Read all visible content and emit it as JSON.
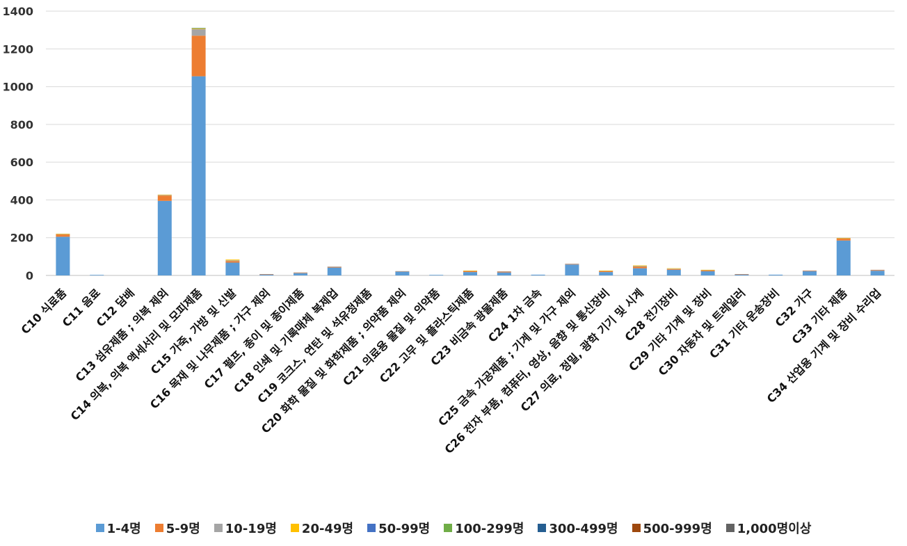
{
  "chart_data": {
    "type": "bar",
    "stacked": true,
    "grid": true,
    "legend_position": "bottom",
    "ylim": [
      0,
      1400
    ],
    "yticks": [
      0,
      200,
      400,
      600,
      800,
      1000,
      1200,
      1400
    ],
    "categories": [
      "C10 식료품",
      "C11 음료",
      "C12 담배",
      "C13 섬유제품 ; 의복 제외",
      "C14 의복, 의복 액세서리 및 모피제품",
      "C15 가죽, 가방 및 신발",
      "C16 목재 및 나무제품 ; 가구 제외",
      "C17 펄프, 종이 및 종이제품",
      "C18 인쇄 및 기록매체 복제업",
      "C19 코크스, 연탄 및 석유정제품",
      "C20 화학 물질 및 화학제품 ; 의약품 제외",
      "C21 의료용 물질 및 의약품",
      "C22 고무 및 플라스틱제품",
      "C23 비금속 광물제품",
      "C24 1차 금속",
      "C25 금속 가공제품 ; 기계 및 가구 제외",
      "C26 전자 부품, 컴퓨터, 영상, 음향 및 통신장비",
      "C27 의료, 정밀, 광학 기기 및 시계",
      "C28 전기장비",
      "C29 기타 기계 및 장비",
      "C30 자동차 및 트레일러",
      "C31 기타 운송장비",
      "C32 가구",
      "C33 기타 제품",
      "C34 산업용 기계 및 장비 수리업"
    ],
    "series": [
      {
        "name": "1-4명",
        "color": "#5B9BD5",
        "values": [
          205,
          3,
          0,
          395,
          1055,
          68,
          6,
          12,
          42,
          0,
          20,
          3,
          18,
          16,
          4,
          58,
          18,
          38,
          30,
          22,
          6,
          4,
          22,
          185,
          25
        ]
      },
      {
        "name": "5-9명",
        "color": "#ED7D31",
        "values": [
          12,
          0,
          0,
          28,
          215,
          8,
          1,
          3,
          4,
          0,
          2,
          0,
          5,
          4,
          0,
          3,
          5,
          8,
          4,
          4,
          1,
          0,
          3,
          10,
          4
        ]
      },
      {
        "name": "10-19명",
        "color": "#A5A5A5",
        "values": [
          3,
          0,
          0,
          4,
          35,
          4,
          0,
          1,
          1,
          0,
          1,
          0,
          2,
          2,
          0,
          1,
          2,
          4,
          2,
          2,
          0,
          0,
          1,
          3,
          1
        ]
      },
      {
        "name": "20-49명",
        "color": "#FFC000",
        "values": [
          1,
          0,
          0,
          1,
          4,
          4,
          0,
          0,
          0,
          0,
          0,
          0,
          1,
          0,
          0,
          0,
          1,
          3,
          2,
          2,
          0,
          0,
          0,
          1,
          0
        ]
      },
      {
        "name": "50-99명",
        "color": "#4472C4",
        "values": [
          0,
          0,
          0,
          0,
          1,
          0,
          0,
          0,
          0,
          0,
          0,
          0,
          0,
          0,
          0,
          0,
          0,
          0,
          0,
          0,
          0,
          0,
          0,
          0,
          0
        ]
      },
      {
        "name": "100-299명",
        "color": "#70AD47",
        "values": [
          0,
          0,
          0,
          0,
          1,
          0,
          0,
          0,
          0,
          0,
          0,
          0,
          0,
          0,
          0,
          0,
          0,
          0,
          0,
          0,
          0,
          0,
          0,
          0,
          0
        ]
      },
      {
        "name": "300-499명",
        "color": "#255E91",
        "values": [
          0,
          0,
          0,
          0,
          0,
          0,
          0,
          0,
          0,
          0,
          0,
          0,
          0,
          0,
          0,
          0,
          0,
          0,
          0,
          0,
          0,
          0,
          0,
          0,
          0
        ]
      },
      {
        "name": "500-999명",
        "color": "#9E480E",
        "values": [
          0,
          0,
          0,
          0,
          0,
          0,
          0,
          0,
          0,
          0,
          0,
          0,
          0,
          0,
          0,
          0,
          0,
          0,
          0,
          0,
          0,
          0,
          0,
          0,
          0
        ]
      },
      {
        "name": "1,000명이상",
        "color": "#636363",
        "values": [
          0,
          0,
          0,
          0,
          0,
          0,
          0,
          0,
          0,
          0,
          0,
          0,
          0,
          0,
          0,
          0,
          0,
          0,
          0,
          0,
          0,
          0,
          0,
          0,
          0
        ]
      }
    ]
  }
}
